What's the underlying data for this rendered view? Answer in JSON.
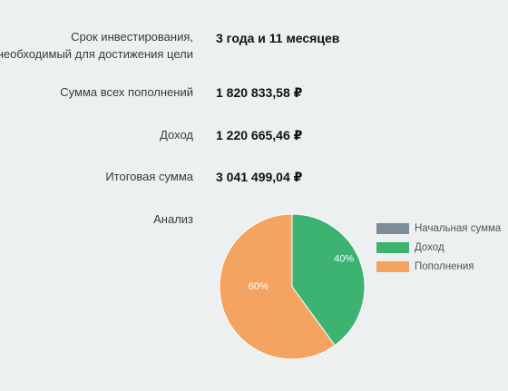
{
  "results": {
    "term_label_line1": "Срок инвестирования,",
    "term_label_line2": "необходимый для достижения цели",
    "term_value": "3 года и 11 месяцев",
    "contributions_label": "Сумма всех пополнений",
    "contributions_value": "1 820 833,58 ₽",
    "income_label": "Доход",
    "income_value": "1 220 665,46 ₽",
    "total_label": "Итоговая сумма",
    "total_value": "3 041 499,04 ₽",
    "analysis_label": "Анализ"
  },
  "chart_data": {
    "type": "pie",
    "slices": [
      {
        "name": "Начальная сумма",
        "value": 0,
        "color": "#7e8b99"
      },
      {
        "name": "Доход",
        "value": 40,
        "color": "#3cb371"
      },
      {
        "name": "Пополнения",
        "value": 60,
        "color": "#f4a460"
      }
    ],
    "slice_labels": [
      "",
      "40%",
      "60%"
    ],
    "legend_placement": "right"
  }
}
